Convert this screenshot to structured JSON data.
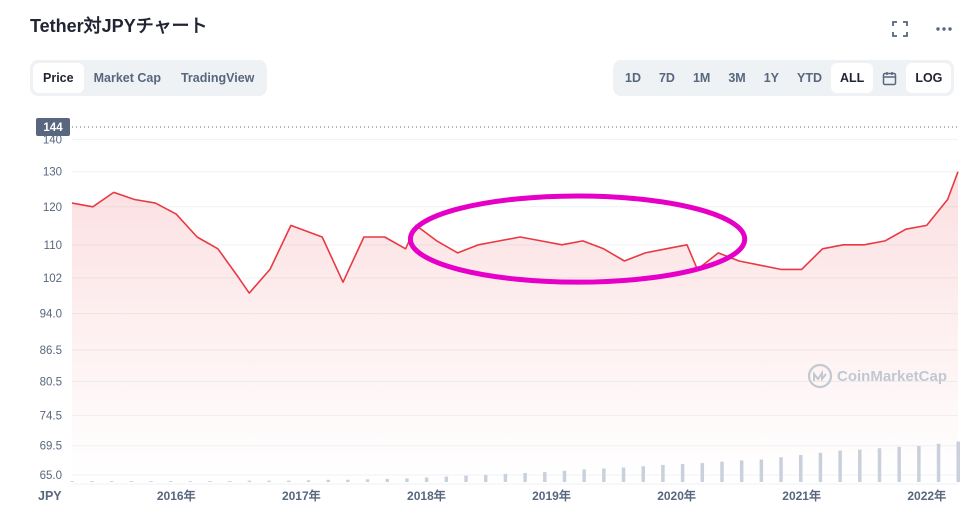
{
  "header": {
    "title": "Tether対JPYチャート",
    "fullscreen_icon": "fullscreen-icon",
    "more_icon": "more-icon"
  },
  "tabs": {
    "items": [
      {
        "label": "Price",
        "active": true
      },
      {
        "label": "Market Cap",
        "active": false
      },
      {
        "label": "TradingView",
        "active": false
      }
    ]
  },
  "ranges": {
    "items": [
      {
        "label": "1D"
      },
      {
        "label": "7D"
      },
      {
        "label": "1M"
      },
      {
        "label": "3M"
      },
      {
        "label": "1Y"
      },
      {
        "label": "YTD"
      },
      {
        "label": "ALL",
        "active": true
      }
    ],
    "calendar_icon": "calendar-icon",
    "log_label": "LOG"
  },
  "colors": {
    "line": "#ea3943",
    "fill": "#fde4e4",
    "volume": "#c9d1dc",
    "annotation": "#e600c7",
    "current_badge": "#58667e"
  },
  "watermark": {
    "text": "CoinMarketCap",
    "icon": "coinmarketcap-logo-icon"
  },
  "chart_data": {
    "type": "line",
    "series": [
      {
        "x": [
          "2015-03",
          "2015-05",
          "2015-07",
          "2015-09",
          "2015-11",
          "2016-01",
          "2016-03",
          "2016-05",
          "2016-07",
          "2016-08",
          "2016-10",
          "2016-12",
          "2017-02",
          "2017-03",
          "2017-05",
          "2017-07",
          "2017-09",
          "2017-11",
          "2017-12",
          "2018-02",
          "2018-04",
          "2018-06",
          "2018-08",
          "2018-10",
          "2018-12",
          "2019-02",
          "2019-04",
          "2019-06",
          "2019-08",
          "2019-10",
          "2019-12",
          "2020-02",
          "2020-03",
          "2020-05",
          "2020-07",
          "2020-09",
          "2020-11",
          "2021-01",
          "2021-03",
          "2021-05",
          "2021-07",
          "2021-09",
          "2021-11",
          "2022-01",
          "2022-03",
          "2022-04"
        ],
        "values": [
          121,
          120,
          124,
          122,
          121,
          118,
          112,
          109,
          102,
          98.5,
          104,
          115,
          113,
          112,
          101,
          112,
          112,
          109,
          115,
          111,
          108,
          110,
          111,
          112,
          111,
          110,
          111,
          109,
          106,
          108,
          109,
          110,
          104,
          108,
          106,
          105,
          104,
          104,
          109,
          110,
          110,
          111,
          114,
          115,
          122,
          130
        ]
      }
    ],
    "ylim": [
      65,
      144
    ],
    "y_scale": "log",
    "y_ticks": [
      140,
      130,
      120,
      110,
      102,
      94.0,
      86.5,
      80.5,
      74.5,
      69.5,
      65.0
    ],
    "y_tick_labels": [
      "140",
      "130",
      "120",
      "110",
      "102",
      "94.0",
      "86.5",
      "80.5",
      "74.5",
      "69.5",
      "65.0"
    ],
    "y_unit": "JPY",
    "x_ticks": [
      {
        "label": "2016年",
        "date": "2016-01"
      },
      {
        "label": "2017年",
        "date": "2017-01"
      },
      {
        "label": "2018年",
        "date": "2018-01"
      },
      {
        "label": "2019年",
        "date": "2019-01"
      },
      {
        "label": "2020年",
        "date": "2020-01"
      },
      {
        "label": "2021年",
        "date": "2021-01"
      },
      {
        "label": "2022年",
        "date": "2022-01"
      }
    ],
    "x_range": [
      "2015-03",
      "2022-04"
    ],
    "current_price": 144,
    "current_price_label": "144",
    "grid": "horizontal",
    "annotation": {
      "shape": "ellipse",
      "x_range": [
        "2018-01",
        "2020-06"
      ],
      "y_range": [
        101,
        123
      ]
    },
    "volume": [
      0.02,
      0.02,
      0.02,
      0.02,
      0.02,
      0.02,
      0.02,
      0.02,
      0.02,
      0.03,
      0.03,
      0.03,
      0.04,
      0.05,
      0.05,
      0.06,
      0.07,
      0.08,
      0.1,
      0.12,
      0.14,
      0.16,
      0.18,
      0.2,
      0.22,
      0.25,
      0.28,
      0.3,
      0.32,
      0.35,
      0.38,
      0.4,
      0.42,
      0.45,
      0.48,
      0.5,
      0.55,
      0.6,
      0.65,
      0.7,
      0.72,
      0.75,
      0.78,
      0.8,
      0.85,
      0.9
    ]
  }
}
